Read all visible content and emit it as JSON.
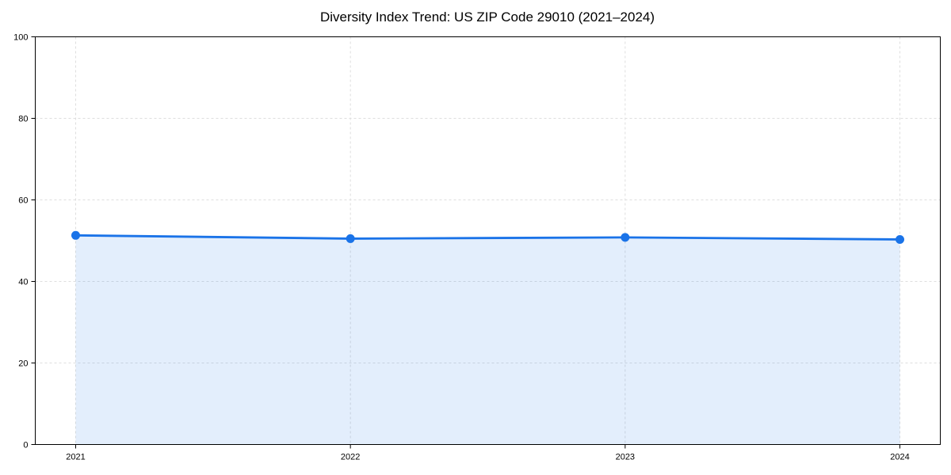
{
  "chart_data": {
    "type": "area",
    "title": "Diversity Index Trend: US ZIP Code 29010 (2021–2024)",
    "categories": [
      "2021",
      "2022",
      "2023",
      "2024"
    ],
    "series": [
      {
        "name": "Diversity Index",
        "values": [
          51.3,
          50.5,
          50.8,
          50.3
        ]
      }
    ],
    "xlabel": "",
    "ylabel": "",
    "ylim": [
      0,
      100
    ],
    "y_ticks": [
      0,
      20,
      40,
      60,
      80,
      100
    ],
    "grid": "dashed, horizontal and vertical at ticks",
    "legend": "none",
    "colors": {
      "line": "#1a73e8",
      "marker": "#1a73e8",
      "fill": "#1a73e8",
      "fill_opacity": 0.12,
      "gridline": "#dedede",
      "axis": "#000000",
      "text": "#000000",
      "background": "#ffffff"
    }
  }
}
